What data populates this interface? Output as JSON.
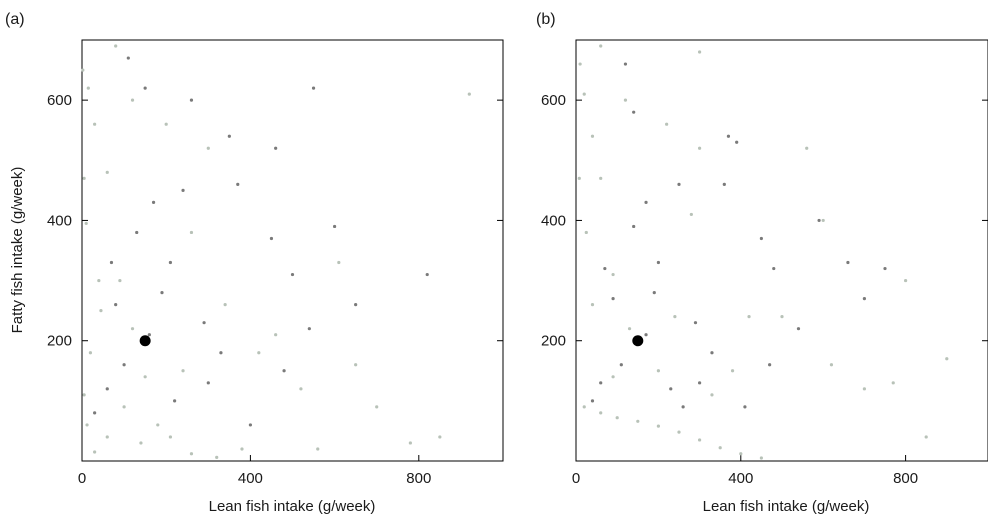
{
  "colors": {
    "light_points": "#b8c2b8",
    "dark_points": "#7a7a7a",
    "highlight_point": "#000000",
    "axes": "#000000"
  },
  "chart_data": [
    {
      "type": "scatter",
      "panel_label": "(a)",
      "xlabel": "Lean fish intake (g/week)",
      "ylabel": "Fatty fish intake (g/week)",
      "xlim": [
        0,
        1000
      ],
      "ylim": [
        0,
        700
      ],
      "x_ticks": [
        0,
        400,
        800
      ],
      "y_ticks": [
        200,
        400,
        600
      ],
      "grid": false,
      "series": [
        {
          "style": "light",
          "points": [
            [
              2,
              650
            ],
            [
              15,
              620
            ],
            [
              30,
              560
            ],
            [
              5,
              470
            ],
            [
              10,
              395
            ],
            [
              60,
              480
            ],
            [
              90,
              300
            ],
            [
              45,
              250
            ],
            [
              20,
              180
            ],
            [
              120,
              220
            ],
            [
              150,
              140
            ],
            [
              180,
              60
            ],
            [
              60,
              40
            ],
            [
              30,
              15
            ],
            [
              210,
              40
            ],
            [
              260,
              12
            ],
            [
              320,
              6
            ],
            [
              380,
              20
            ],
            [
              420,
              180
            ],
            [
              520,
              120
            ],
            [
              610,
              330
            ],
            [
              700,
              90
            ],
            [
              780,
              30
            ],
            [
              920,
              610
            ],
            [
              850,
              40
            ],
            [
              260,
              380
            ],
            [
              300,
              520
            ],
            [
              200,
              560
            ],
            [
              120,
              600
            ],
            [
              80,
              690
            ],
            [
              40,
              300
            ],
            [
              5,
              110
            ],
            [
              12,
              60
            ],
            [
              100,
              90
            ],
            [
              140,
              30
            ],
            [
              240,
              150
            ],
            [
              340,
              260
            ],
            [
              460,
              210
            ],
            [
              560,
              20
            ],
            [
              650,
              160
            ]
          ]
        },
        {
          "style": "dark",
          "points": [
            [
              110,
              670
            ],
            [
              150,
              620
            ],
            [
              260,
              600
            ],
            [
              350,
              540
            ],
            [
              550,
              620
            ],
            [
              460,
              520
            ],
            [
              240,
              450
            ],
            [
              130,
              380
            ],
            [
              210,
              330
            ],
            [
              80,
              260
            ],
            [
              160,
              210
            ],
            [
              100,
              160
            ],
            [
              220,
              100
            ],
            [
              300,
              130
            ],
            [
              400,
              60
            ],
            [
              500,
              310
            ],
            [
              600,
              390
            ],
            [
              650,
              260
            ],
            [
              820,
              310
            ],
            [
              450,
              370
            ],
            [
              370,
              460
            ],
            [
              290,
              230
            ],
            [
              60,
              120
            ],
            [
              190,
              280
            ],
            [
              330,
              180
            ],
            [
              480,
              150
            ],
            [
              540,
              220
            ],
            [
              30,
              80
            ],
            [
              70,
              330
            ],
            [
              170,
              430
            ]
          ]
        },
        {
          "style": "highlight",
          "points": [
            [
              150,
              200
            ]
          ]
        }
      ]
    },
    {
      "type": "scatter",
      "panel_label": "(b)",
      "xlabel": "Lean fish intake (g/week)",
      "ylabel": "",
      "xlim": [
        0,
        1000
      ],
      "ylim": [
        0,
        700
      ],
      "x_ticks": [
        0,
        400,
        800
      ],
      "y_ticks": [
        200,
        400,
        600
      ],
      "grid": false,
      "series": [
        {
          "style": "light",
          "points": [
            [
              10,
              660
            ],
            [
              20,
              610
            ],
            [
              40,
              540
            ],
            [
              8,
              470
            ],
            [
              25,
              380
            ],
            [
              60,
              470
            ],
            [
              90,
              310
            ],
            [
              40,
              260
            ],
            [
              20,
              90
            ],
            [
              60,
              80
            ],
            [
              100,
              72
            ],
            [
              150,
              66
            ],
            [
              200,
              58
            ],
            [
              250,
              48
            ],
            [
              300,
              35
            ],
            [
              350,
              22
            ],
            [
              400,
              12
            ],
            [
              450,
              5
            ],
            [
              130,
              220
            ],
            [
              200,
              150
            ],
            [
              280,
              410
            ],
            [
              300,
              520
            ],
            [
              220,
              560
            ],
            [
              120,
              600
            ],
            [
              60,
              690
            ],
            [
              300,
              680
            ],
            [
              500,
              240
            ],
            [
              600,
              400
            ],
            [
              700,
              120
            ],
            [
              800,
              300
            ],
            [
              900,
              170
            ],
            [
              850,
              40
            ],
            [
              420,
              240
            ],
            [
              560,
              520
            ],
            [
              620,
              160
            ],
            [
              770,
              130
            ],
            [
              380,
              150
            ],
            [
              240,
              240
            ],
            [
              90,
              140
            ],
            [
              330,
              110
            ]
          ]
        },
        {
          "style": "dark",
          "points": [
            [
              120,
              660
            ],
            [
              140,
              580
            ],
            [
              370,
              540
            ],
            [
              390,
              530
            ],
            [
              250,
              460
            ],
            [
              140,
              390
            ],
            [
              200,
              330
            ],
            [
              90,
              270
            ],
            [
              170,
              210
            ],
            [
              110,
              160
            ],
            [
              230,
              120
            ],
            [
              300,
              130
            ],
            [
              410,
              90
            ],
            [
              480,
              320
            ],
            [
              590,
              400
            ],
            [
              660,
              330
            ],
            [
              700,
              270
            ],
            [
              750,
              320
            ],
            [
              450,
              370
            ],
            [
              360,
              460
            ],
            [
              290,
              230
            ],
            [
              60,
              130
            ],
            [
              190,
              280
            ],
            [
              330,
              180
            ],
            [
              470,
              160
            ],
            [
              540,
              220
            ],
            [
              40,
              100
            ],
            [
              70,
              320
            ],
            [
              170,
              430
            ],
            [
              260,
              90
            ]
          ]
        },
        {
          "style": "highlight",
          "points": [
            [
              150,
              200
            ]
          ]
        }
      ]
    }
  ]
}
